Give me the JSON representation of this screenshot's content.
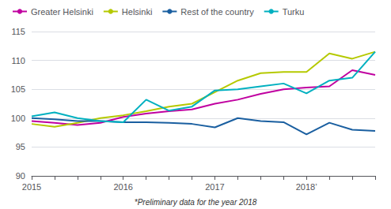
{
  "chart_data": {
    "type": "line",
    "categories": [
      "2015",
      null,
      null,
      null,
      "2016",
      null,
      null,
      null,
      "2017",
      null,
      null,
      null,
      "2018’",
      null,
      null,
      null
    ],
    "series": [
      {
        "name": "Greater Helsinki",
        "color": "#c000a0",
        "values": [
          99.5,
          99.2,
          98.8,
          99.2,
          100.2,
          100.8,
          101.2,
          101.5,
          102.5,
          103.2,
          104.2,
          105.0,
          105.3,
          105.5,
          108.3,
          107.5
        ]
      },
      {
        "name": "Helsinki",
        "color": "#b5c900",
        "values": [
          99.0,
          98.5,
          99.2,
          100.0,
          100.5,
          101.2,
          102.0,
          102.5,
          104.5,
          106.5,
          107.8,
          108.0,
          108.0,
          111.2,
          110.3,
          111.5
        ]
      },
      {
        "name": "Rest of the country",
        "color": "#1a5fa0",
        "values": [
          100.0,
          99.8,
          99.5,
          99.5,
          99.3,
          99.3,
          99.2,
          99.0,
          98.4,
          100.0,
          99.5,
          99.3,
          97.2,
          99.2,
          98.0,
          97.8
        ]
      },
      {
        "name": "Turku",
        "color": "#00b0c0",
        "values": [
          100.3,
          101.0,
          100.0,
          99.5,
          99.3,
          103.2,
          101.3,
          102.0,
          104.8,
          105.0,
          105.5,
          106.0,
          104.3,
          106.5,
          107.0,
          111.5
        ]
      }
    ],
    "ylim": [
      90,
      115
    ],
    "yticks": [
      90,
      95,
      100,
      105,
      110,
      115
    ],
    "grid": true,
    "legend": "upper left",
    "annotations": [
      "*Preliminary data for the year 2018"
    ]
  }
}
